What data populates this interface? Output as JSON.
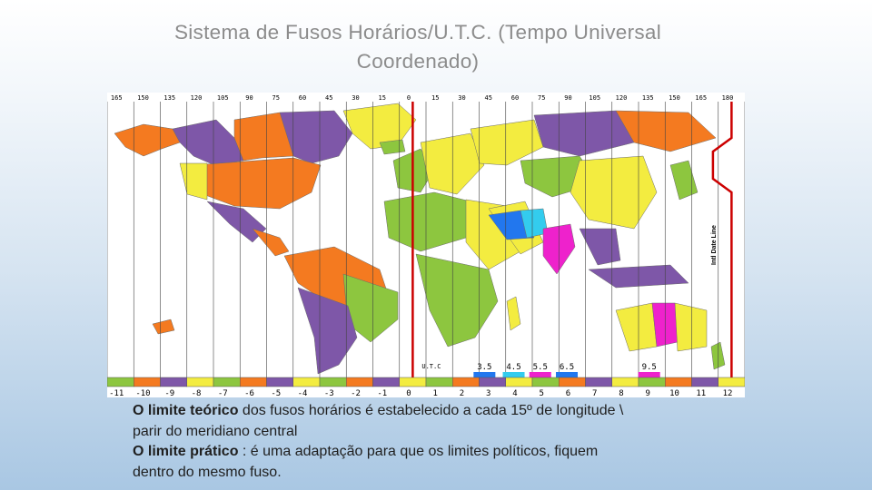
{
  "slide": {
    "title_line1": "Sistema de Fusos Horários/U.T.C. (Tempo Universal",
    "title_line2": "Coordenado)"
  },
  "map": {
    "top_longitudes": [
      "165",
      "150",
      "135",
      "120",
      "105",
      "90",
      "75",
      "60",
      "45",
      "30",
      "15",
      "0",
      "15",
      "30",
      "45",
      "60",
      "75",
      "90",
      "105",
      "120",
      "135",
      "150",
      "165",
      "180"
    ],
    "bottom_offsets": [
      "-11",
      "-10",
      "-9",
      "-8",
      "-7",
      "-6",
      "-5",
      "-4",
      "-3",
      "-2",
      "-1",
      "0",
      "1",
      "2",
      "3",
      "4",
      "5",
      "6",
      "7",
      "8",
      "9",
      "10",
      "11",
      "12"
    ],
    "bottom_colors": [
      "#8dc63f",
      "#f47a20",
      "#7e57a8",
      "#f3ec40",
      "#8dc63f",
      "#f47a20",
      "#7e57a8",
      "#f3ec40",
      "#8dc63f",
      "#f47a20",
      "#7e57a8",
      "#f3ec40",
      "#8dc63f",
      "#f47a20",
      "#7e57a8",
      "#f3ec40",
      "#8dc63f",
      "#f47a20",
      "#7e57a8",
      "#f3ec40",
      "#8dc63f",
      "#f47a20",
      "#7e57a8",
      "#f3ec40"
    ],
    "utc_label": "U.T.C",
    "half_offsets": [
      "3.5",
      "4.5",
      "5.5",
      "6.5",
      "9.5"
    ],
    "date_line_label": "Intl Date Line",
    "colors": {
      "ocean": "#ffffff",
      "grid": "#444444",
      "meridian": "#cc0000",
      "green": "#8dc63f",
      "orange": "#f47a20",
      "purple": "#7e57a8",
      "yellow": "#f3ec40",
      "magenta": "#ee22cc",
      "blue": "#2277ee",
      "cyan": "#33ccee"
    }
  },
  "text": {
    "p1_bold": "O limite teórico",
    "p1_rest": " dos fusos horários é estabelecido a cada 15º de longitude \\",
    "p1_line2": "parir do meridiano central",
    "p2_bold": "O limite prático",
    "p2_rest": " : é uma adaptação  para que os limites políticos, fiquem",
    "p2_line2": "dentro do mesmo fuso."
  }
}
